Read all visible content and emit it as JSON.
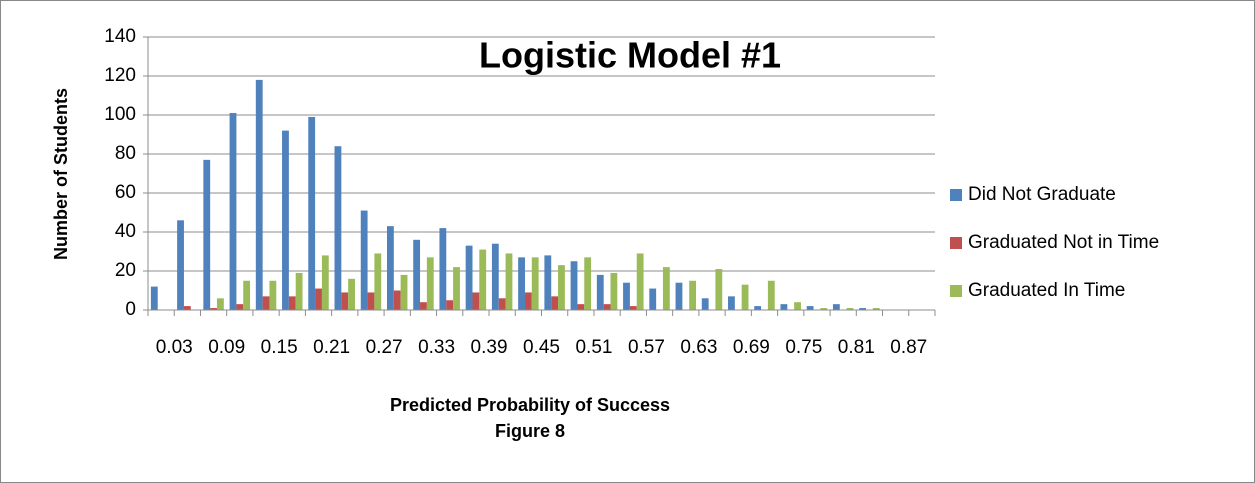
{
  "chart_data": {
    "type": "bar",
    "title": "Logistic Model #1",
    "x_label": "Predicted Probability of Success",
    "y_label": "Number of Students",
    "caption": "Figure 8",
    "categories": [
      "0.03",
      null,
      "0.09",
      null,
      "0.15",
      null,
      "0.21",
      null,
      "0.27",
      null,
      "0.33",
      null,
      "0.39",
      null,
      "0.45",
      null,
      "0.51",
      null,
      "0.57",
      null,
      "0.63",
      null,
      "0.69",
      null,
      "0.75",
      null,
      "0.81",
      null,
      "0.87",
      null
    ],
    "series": [
      {
        "name": "Did Not Graduate",
        "color": "#4f81bd",
        "values": [
          12,
          46,
          77,
          101,
          118,
          92,
          99,
          84,
          51,
          43,
          36,
          42,
          33,
          34,
          27,
          28,
          25,
          18,
          14,
          11,
          14,
          6,
          7,
          2,
          3,
          2,
          3,
          1,
          0,
          0
        ]
      },
      {
        "name": "Graduated Not in Time",
        "color": "#c0504d",
        "values": [
          0,
          2,
          1,
          3,
          7,
          7,
          11,
          9,
          9,
          10,
          4,
          5,
          9,
          6,
          9,
          7,
          3,
          3,
          2,
          0,
          0,
          0,
          0,
          0,
          0,
          0,
          0,
          0,
          0,
          0
        ]
      },
      {
        "name": "Graduated In Time",
        "color": "#9bbb59",
        "values": [
          0,
          0,
          6,
          15,
          15,
          19,
          28,
          16,
          29,
          18,
          27,
          22,
          31,
          29,
          27,
          23,
          27,
          19,
          29,
          22,
          15,
          21,
          13,
          15,
          4,
          1,
          1,
          1,
          0,
          0
        ]
      }
    ],
    "ylim": [
      0,
      140
    ],
    "yticks": [
      0,
      20,
      40,
      60,
      80,
      100,
      120,
      140
    ],
    "grid": true,
    "legend": "right"
  }
}
